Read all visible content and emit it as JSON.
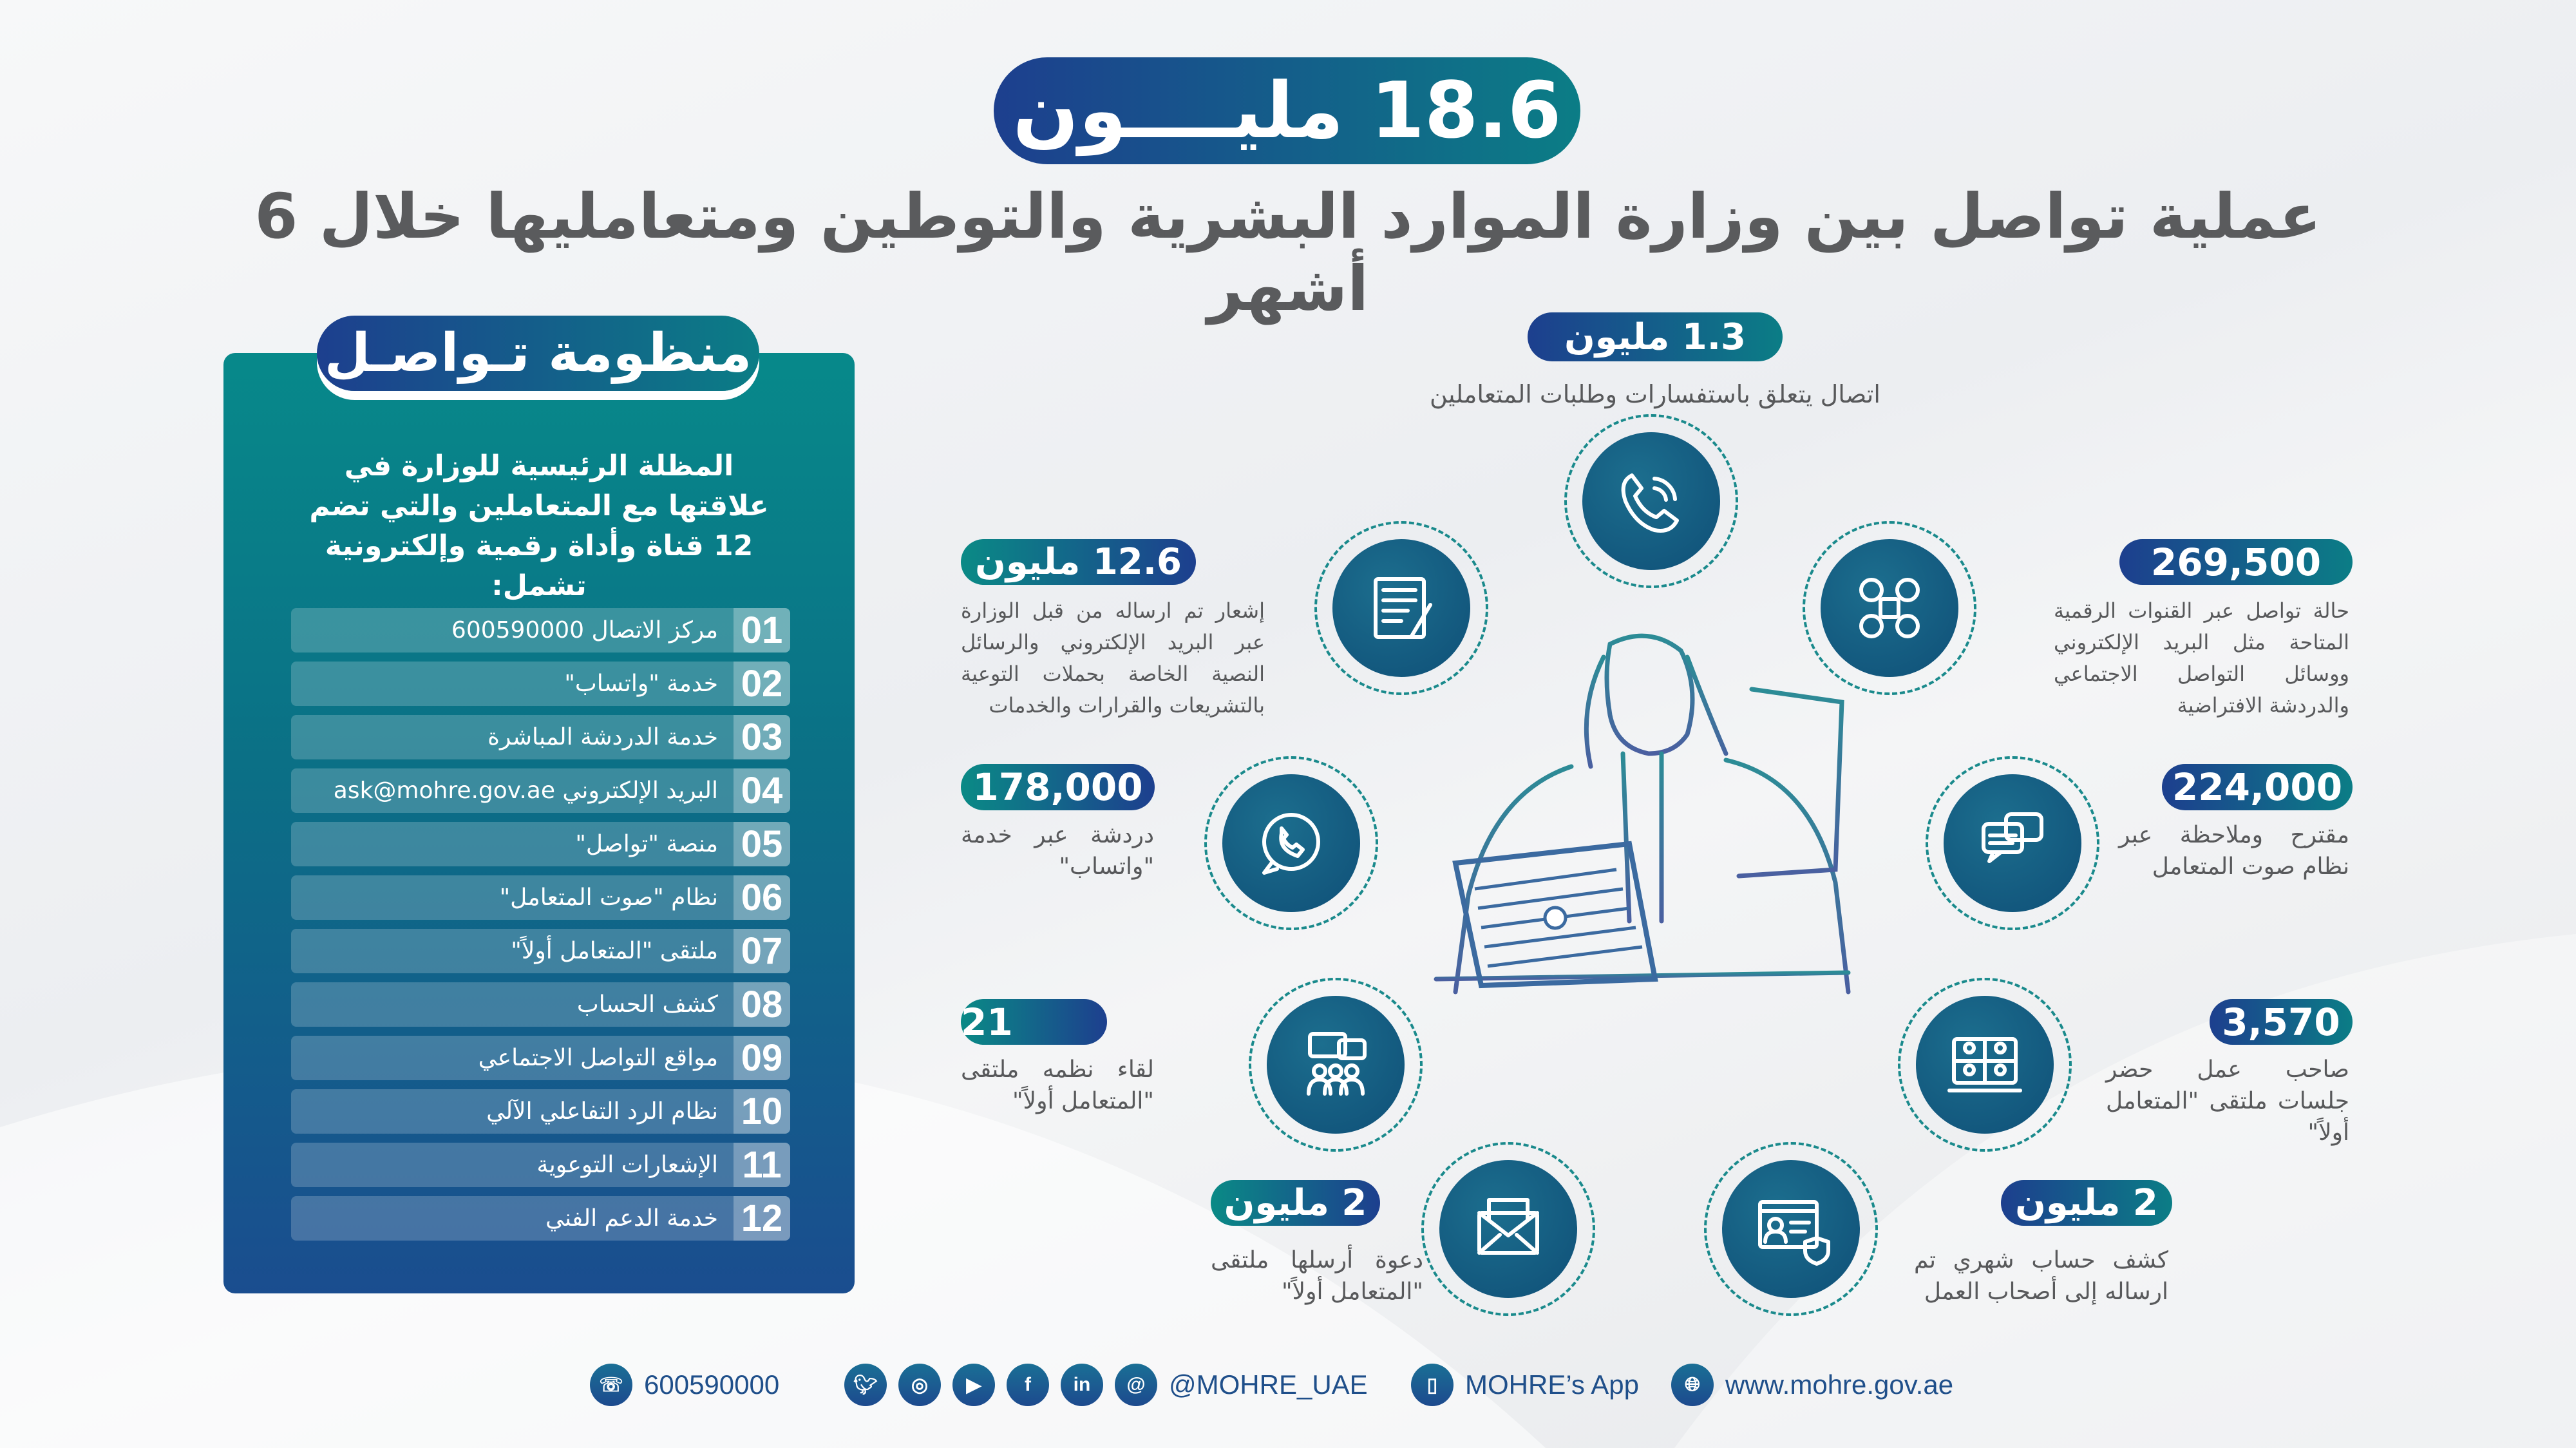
{
  "header": {
    "headline": "18.6 مليــــون",
    "subtitle": "عملية تواصل بين وزارة الموارد البشرية والتوطين ومتعامليها خلال 6 أشهر"
  },
  "panel": {
    "title": "منظومة تـواصـل",
    "intro": "المظلة الرئيسية للوزارة في علاقتها مع المتعاملين والتي تضم 12 قناة وأداة رقمية وإلكترونية تشمل:",
    "items": [
      {
        "num": "01",
        "label": "مركز الاتصال 600590000"
      },
      {
        "num": "02",
        "label": "خدمة \"واتساب\""
      },
      {
        "num": "03",
        "label": "خدمة الدردشة المباشرة"
      },
      {
        "num": "04",
        "label": "البريد الإلكتروني ask@mohre.gov.ae"
      },
      {
        "num": "05",
        "label": "منصة \"تواصل\""
      },
      {
        "num": "06",
        "label": "نظام \"صوت المتعامل\""
      },
      {
        "num": "07",
        "label": "ملتقى \"المتعامل أولاً\""
      },
      {
        "num": "08",
        "label": "كشف الحساب"
      },
      {
        "num": "09",
        "label": "مواقع التواصل الاجتماعي"
      },
      {
        "num": "10",
        "label": "نظام الرد التفاعلي الآلي"
      },
      {
        "num": "11",
        "label": "الإشعارات التوعوية"
      },
      {
        "num": "12",
        "label": "خدمة الدعم الفني"
      }
    ]
  },
  "stats": {
    "calls": {
      "value": "1.3 مليون",
      "text": "اتصال يتعلق باستفسارات وطلبات المتعاملين",
      "icon": "phone-icon"
    },
    "notifications": {
      "value": "12.6 مليون",
      "text": "إشعار تم ارساله من قبل الوزارة عبر البريد الإلكتروني والرسائل النصية الخاصة بحملات التوعية بالتشريعات والقرارات والخدمات",
      "icon": "document-icon"
    },
    "digital": {
      "value": "269,500",
      "text": "حالة تواصل عبر القنوات الرقمية المتاحة مثل البريد الإلكتروني ووسائل التواصل الاجتماعي والدردشة الافتراضية",
      "icon": "social-media-icon"
    },
    "whatsapp": {
      "value": "178,000",
      "text": "دردشة عبر خدمة \"واتساب\"",
      "icon": "whatsapp-icon"
    },
    "voice": {
      "value": "224,000",
      "text": "مقترح وملاحظة عبر نظام صوت المتعامل",
      "icon": "chat-bubbles-icon"
    },
    "meetings": {
      "value": "21",
      "text": "لقاء نظمه ملتقى \"المتعامل أولاً\"",
      "icon": "meeting-icon"
    },
    "attendees": {
      "value": "3,570",
      "text": "صاحب عمل حضر جلسات ملتقى \"المتعامل أولاً\"",
      "icon": "video-conference-icon"
    },
    "invitations": {
      "value": "2 مليون",
      "text": "دعوة أرسلها ملتقى \"المتعامل أولاً\"",
      "icon": "envelope-icon"
    },
    "statements": {
      "value": "2 مليون",
      "text": "كشف حساب شهري تم ارساله إلى أصحاب العمل",
      "icon": "account-statement-icon"
    }
  },
  "footer": {
    "phone": "600590000",
    "social_handle": "@MOHRE_UAE",
    "social_icons": [
      "twitter-icon",
      "instagram-icon",
      "youtube-icon",
      "facebook-icon",
      "linkedin-icon",
      "threads-icon"
    ],
    "app": "MOHRE’s App",
    "website": "www.mohre.gov.ae"
  },
  "colors": {
    "navy": "#1d3f8e",
    "teal": "#0a8a86",
    "text_gray": "#58595b",
    "footer_blue": "#1f4f8a"
  }
}
